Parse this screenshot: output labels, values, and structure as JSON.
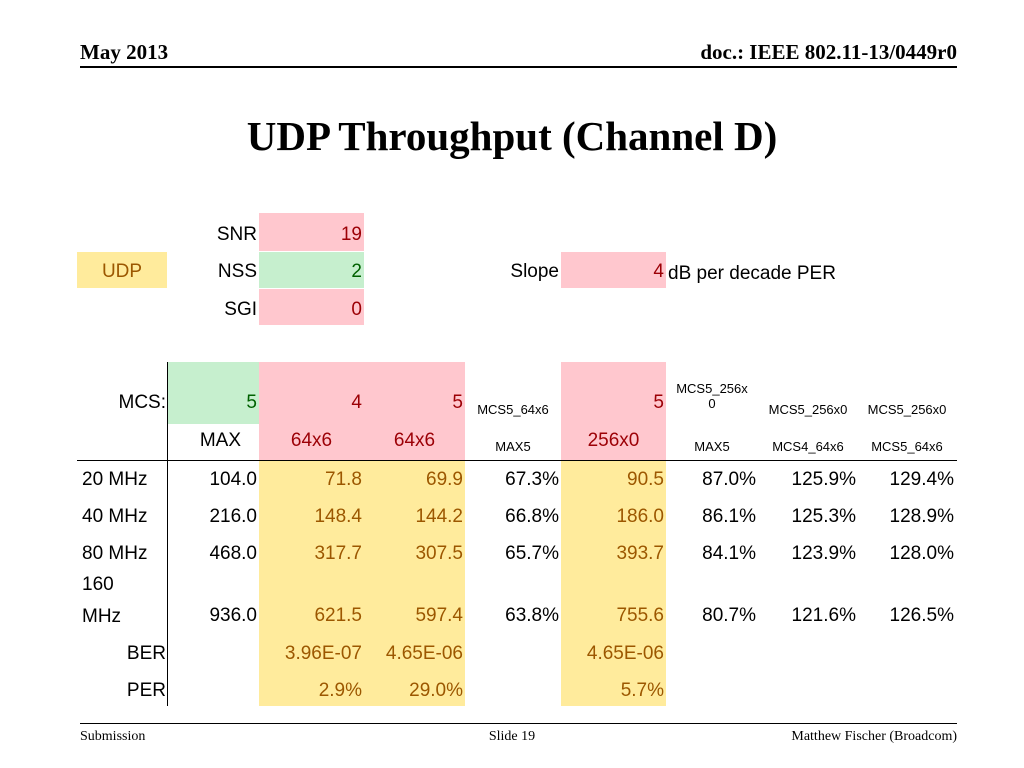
{
  "header": {
    "date": "May 2013",
    "doc": "doc.: IEEE 802.11-13/0449r0"
  },
  "title": "UDP Throughput (Channel D)",
  "params": {
    "snr_label": "SNR",
    "snr_value": "19",
    "udp_label": "UDP",
    "nss_label": "NSS",
    "nss_value": "2",
    "sgi_label": "SGI",
    "sgi_value": "0",
    "slope_label": "Slope",
    "slope_value": "4",
    "slope_unit": "dB per decade PER"
  },
  "table": {
    "mcs_label": "MCS:",
    "mcs_row": [
      "5",
      "4",
      "5",
      "MCS5_64x6",
      "5",
      "MCS5_256x0",
      "MCS5_256x0",
      "MCS5_256x0"
    ],
    "sub_row": [
      "MAX",
      "64x6",
      "64x6",
      "MAX5",
      "256x0",
      "MAX5",
      "MCS4_64x6",
      "MCS5_64x6"
    ],
    "rows": [
      {
        "label": "20 MHz",
        "cells": [
          "104.0",
          "71.8",
          "69.9",
          "67.3%",
          "90.5",
          "87.0%",
          "125.9%",
          "129.4%"
        ]
      },
      {
        "label": "40 MHz",
        "cells": [
          "216.0",
          "148.4",
          "144.2",
          "66.8%",
          "186.0",
          "86.1%",
          "125.3%",
          "128.9%"
        ]
      },
      {
        "label": "80 MHz",
        "cells": [
          "468.0",
          "317.7",
          "307.5",
          "65.7%",
          "393.7",
          "84.1%",
          "123.9%",
          "128.0%"
        ]
      },
      {
        "label_line1": "160",
        "label_line2": "MHz",
        "cells": [
          "936.0",
          "621.5",
          "597.4",
          "63.8%",
          "755.6",
          "80.7%",
          "121.6%",
          "126.5%"
        ]
      }
    ],
    "ber": {
      "label": "BER",
      "cells": [
        "3.96E-07",
        "4.65E-06",
        "4.65E-06"
      ]
    },
    "per": {
      "label": "PER",
      "cells": [
        "2.9%",
        "29.0%",
        "5.7%"
      ]
    }
  },
  "footer": {
    "left": "Submission",
    "center": "Slide 19",
    "right": "Matthew Fischer (Broadcom)"
  }
}
